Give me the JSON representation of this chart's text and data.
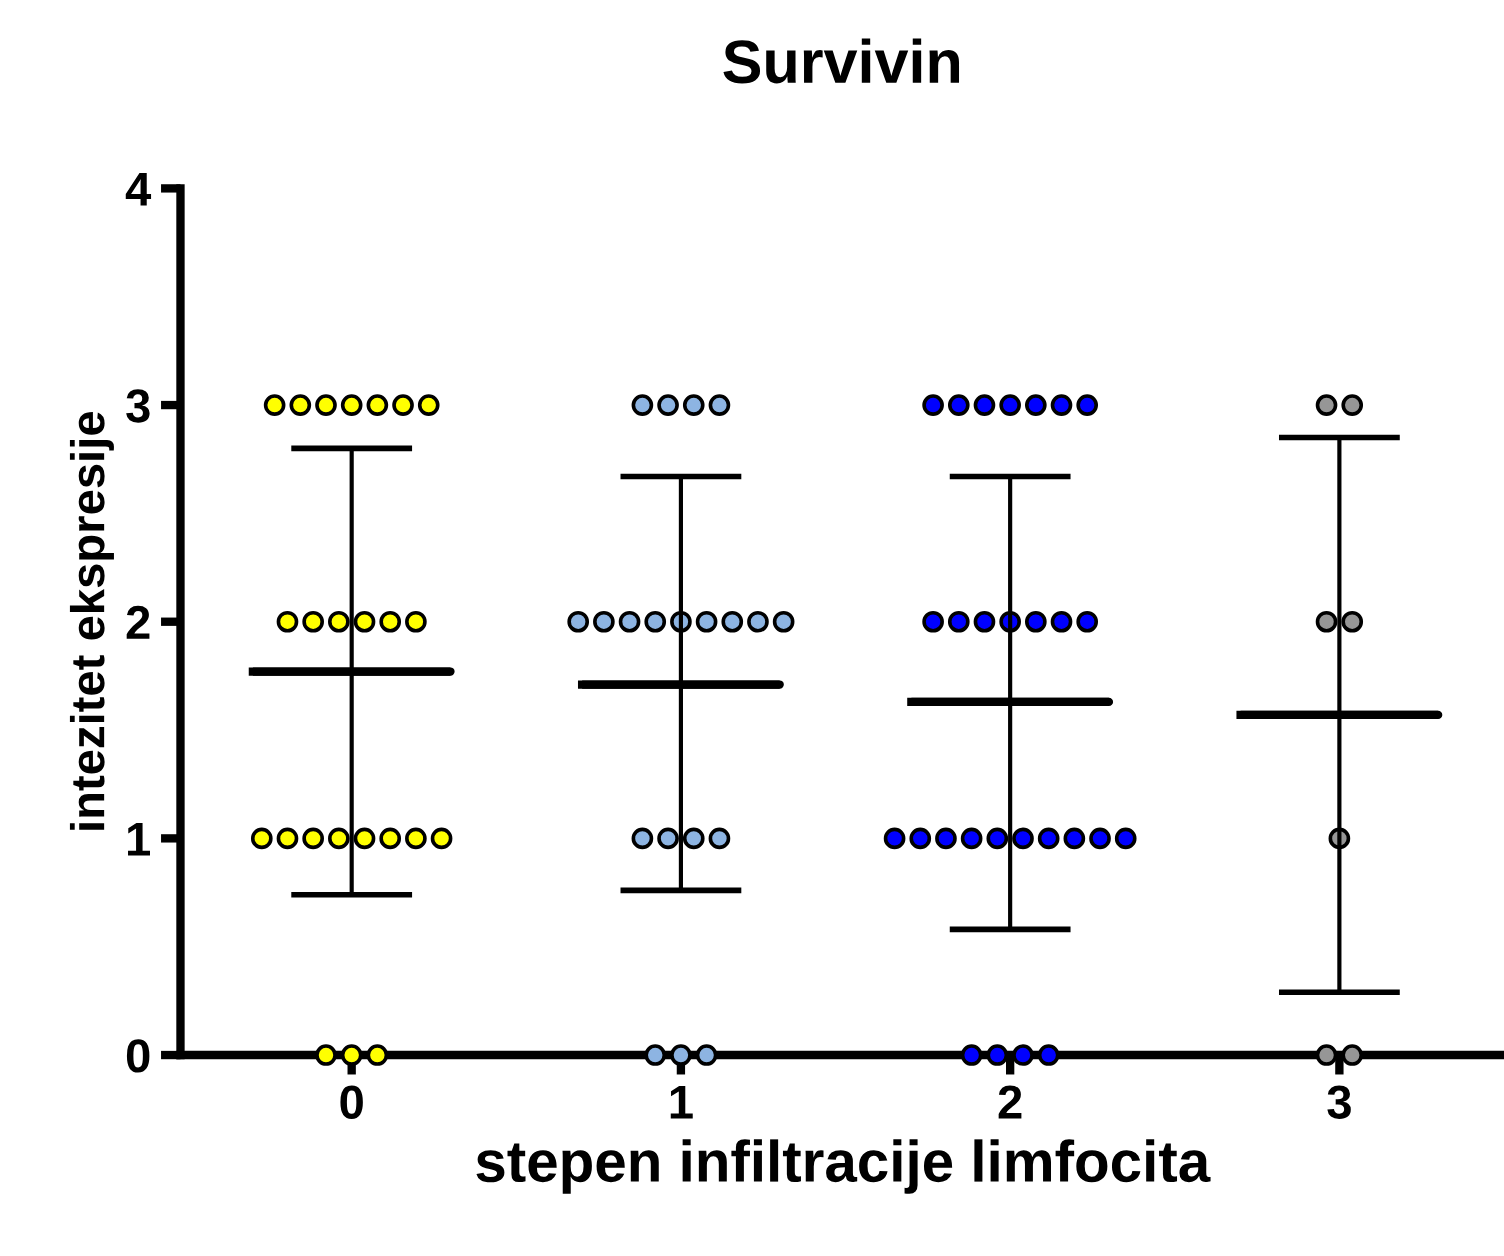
{
  "chart_data": {
    "type": "scatter",
    "title": "Survivin",
    "xlabel": "stepen infiltracije limfocita",
    "ylabel": "intezitet ekspresije",
    "categories": [
      "0",
      "1",
      "2",
      "3"
    ],
    "ylim": [
      0,
      4
    ],
    "yticks": [
      0,
      1,
      2,
      3,
      4
    ],
    "grid": false,
    "legend": false,
    "marker": "circle",
    "series": [
      {
        "color": "#ffff00",
        "x": [
          "0",
          "0",
          "0",
          "0",
          "0",
          "0",
          "0",
          "0",
          "0",
          "0",
          "0",
          "0",
          "0",
          "0",
          "0",
          "0",
          "0",
          "0",
          "0",
          "0",
          "0",
          "0",
          "0",
          "0"
        ],
        "values": [
          0,
          0,
          0,
          1,
          1,
          1,
          1,
          1,
          1,
          1,
          1,
          2,
          2,
          2,
          2,
          2,
          2,
          3,
          3,
          3,
          3,
          3,
          3,
          3
        ]
      },
      {
        "color": "#8db4e2",
        "x": [
          "1",
          "1",
          "1",
          "1",
          "1",
          "1",
          "1",
          "1",
          "1",
          "1",
          "1",
          "1",
          "1",
          "1",
          "1",
          "1",
          "1",
          "1",
          "1",
          "1"
        ],
        "values": [
          0,
          0,
          0,
          1,
          1,
          1,
          1,
          2,
          2,
          2,
          2,
          2,
          2,
          2,
          2,
          2,
          3,
          3,
          3,
          3
        ]
      },
      {
        "color": "#0000ff",
        "x": [
          "2",
          "2",
          "2",
          "2",
          "2",
          "2",
          "2",
          "2",
          "2",
          "2",
          "2",
          "2",
          "2",
          "2",
          "2",
          "2",
          "2",
          "2",
          "2",
          "2",
          "2",
          "2",
          "2",
          "2",
          "2",
          "2",
          "2",
          "2"
        ],
        "values": [
          0,
          0,
          0,
          0,
          1,
          1,
          1,
          1,
          1,
          1,
          1,
          1,
          1,
          1,
          2,
          2,
          2,
          2,
          2,
          2,
          2,
          3,
          3,
          3,
          3,
          3,
          3,
          3
        ]
      },
      {
        "color": "#969696",
        "x": [
          "3",
          "3",
          "3",
          "3",
          "3",
          "3",
          "3"
        ],
        "values": [
          0,
          0,
          1,
          2,
          2,
          3,
          3
        ]
      },
      {
        "type": "box",
        "color": "#000000",
        "boxes": [
          {
            "low": 0.74,
            "q1": 1.77,
            "median": 1.77,
            "q3": 1.77,
            "high": 2.8
          },
          {
            "low": 0.76,
            "q1": 1.71,
            "median": 1.71,
            "q3": 1.71,
            "high": 2.67
          },
          {
            "low": 0.58,
            "q1": 1.63,
            "median": 1.63,
            "q3": 1.63,
            "high": 2.67
          },
          {
            "low": 0.29,
            "q1": 1.57,
            "median": 1.57,
            "q3": 1.57,
            "high": 2.85
          }
        ]
      }
    ]
  }
}
